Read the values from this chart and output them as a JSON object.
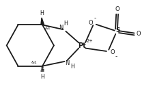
{
  "bg_color": "#ffffff",
  "line_color": "#1a1a1a",
  "lw": 1.3,
  "figsize": [
    2.27,
    1.42
  ],
  "dpi": 100,
  "xlim": [
    0,
    10
  ],
  "ylim": [
    0,
    6.3
  ]
}
